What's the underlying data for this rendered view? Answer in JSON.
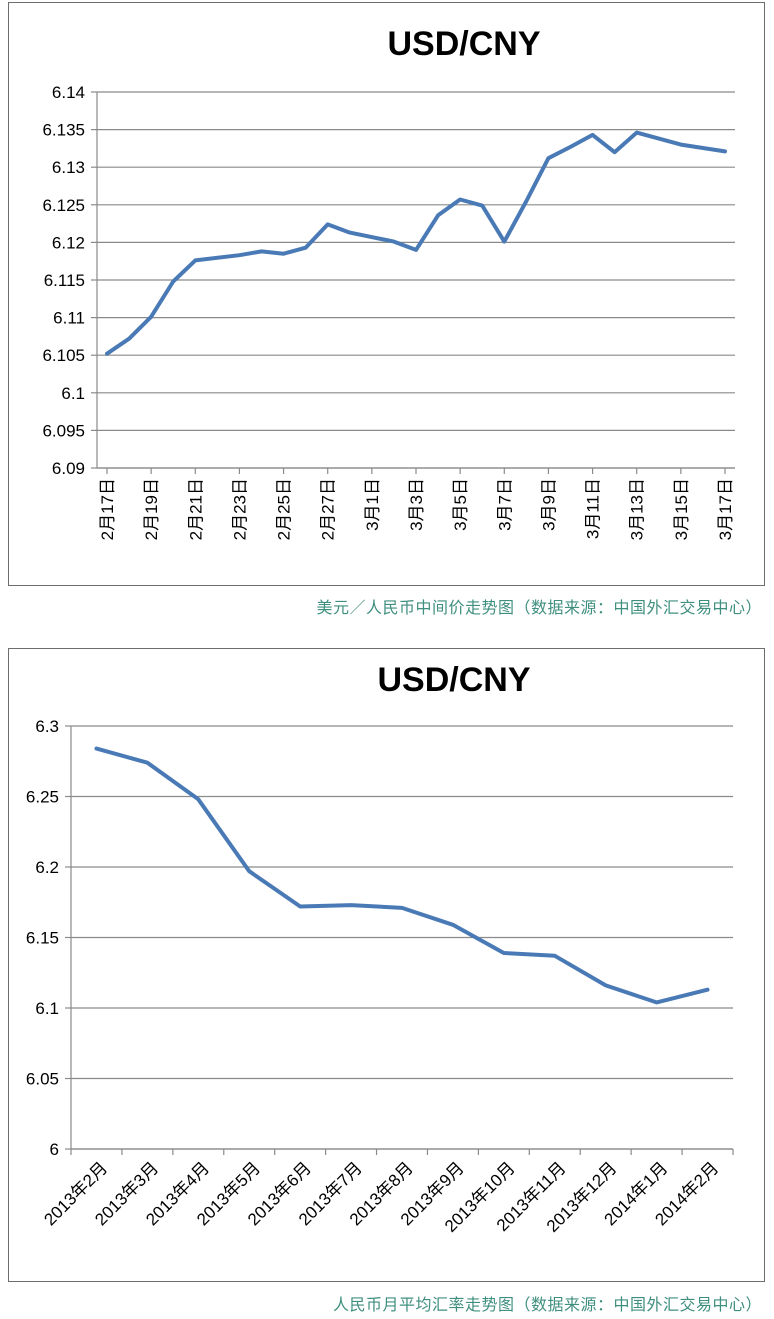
{
  "chart_data": [
    {
      "type": "line",
      "title": "USD/CNY",
      "xlabel": "",
      "ylabel": "",
      "ylim": [
        6.09,
        6.14
      ],
      "y_ticks": [
        "6.14",
        "6.135",
        "6.13",
        "6.125",
        "6.12",
        "6.115",
        "6.11",
        "6.105",
        "6.1",
        "6.095",
        "6.09"
      ],
      "x_tick_labels": [
        "2月17日",
        "2月19日",
        "2月21日",
        "2月23日",
        "2月25日",
        "2月27日",
        "3月1日",
        "3月3日",
        "3月5日",
        "3月7日",
        "3月9日",
        "3月11日",
        "3月13日",
        "3月15日",
        "3月17日"
      ],
      "x_domain": [
        1,
        29
      ],
      "grid": true,
      "legend": "none",
      "color": "#4a7ab5",
      "series": [
        {
          "x": [
            1,
            2,
            3,
            4,
            5,
            7,
            8,
            9,
            10,
            11,
            12,
            14,
            15,
            16,
            17,
            18,
            19,
            20,
            21,
            22,
            23,
            24,
            25,
            26,
            27,
            29
          ],
          "values": [
            6.1052,
            6.1072,
            6.1101,
            6.1148,
            6.1176,
            6.1183,
            6.1188,
            6.1185,
            6.1193,
            6.1224,
            6.1213,
            6.1201,
            6.119,
            6.1236,
            6.1257,
            6.1249,
            6.1201,
            6.1255,
            6.1312,
            6.1327,
            6.1343,
            6.132,
            6.1346,
            6.1338,
            6.133,
            6.1321
          ]
        }
      ],
      "caption": "美元／人民币中间价走势图（数据来源：中国外汇交易中心）"
    },
    {
      "type": "line",
      "title": "USD/CNY",
      "xlabel": "",
      "ylabel": "",
      "ylim": [
        6,
        6.3
      ],
      "y_ticks": [
        "6.3",
        "6.25",
        "6.2",
        "6.15",
        "6.1",
        "6.05",
        "6"
      ],
      "categories": [
        "2013年2月",
        "2013年3月",
        "2013年4月",
        "2013年5月",
        "2013年6月",
        "2013年7月",
        "2013年8月",
        "2013年9月",
        "2013年10月",
        "2013年11月",
        "2013年12月",
        "2014年1月",
        "2014年2月"
      ],
      "grid": true,
      "legend": "none",
      "color": "#4a7ab5",
      "series": [
        {
          "values": [
            6.284,
            6.274,
            6.248,
            6.197,
            6.172,
            6.173,
            6.171,
            6.159,
            6.139,
            6.137,
            6.116,
            6.104,
            6.113
          ]
        }
      ],
      "caption": "人民币月平均汇率走势图（数据来源：中国外汇交易中心）"
    }
  ]
}
